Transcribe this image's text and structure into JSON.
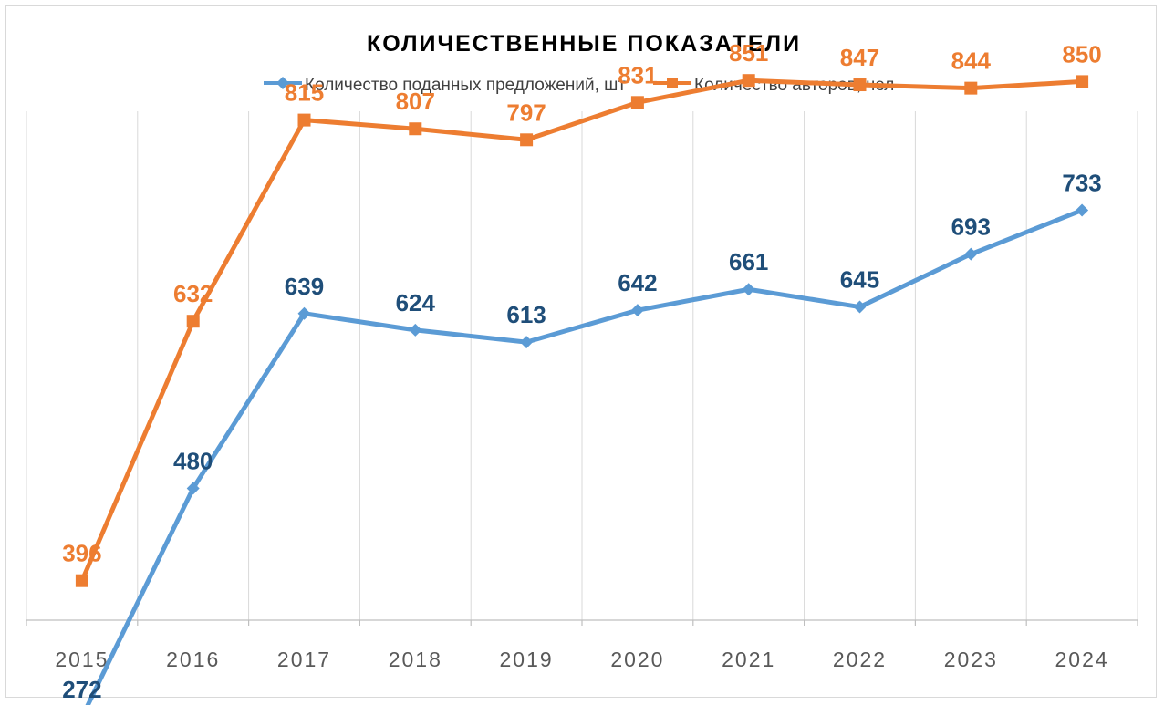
{
  "chart_data": {
    "type": "line",
    "title": "КОЛИЧЕСТВЕННЫЕ ПОКАЗАТЕЛИ",
    "categories": [
      "2015",
      "2016",
      "2017",
      "2018",
      "2019",
      "2020",
      "2021",
      "2022",
      "2023",
      "2024"
    ],
    "series": [
      {
        "name": "Количество поданных предложений, шт",
        "values": [
          272,
          480,
          639,
          624,
          613,
          642,
          661,
          645,
          693,
          733
        ],
        "color": "#5b9bd5",
        "label_color": "#1f4e79",
        "marker": "diamond"
      },
      {
        "name": "Количество авторов, чел",
        "values": [
          396,
          632,
          815,
          807,
          797,
          831,
          851,
          847,
          844,
          850
        ],
        "color": "#ed7d31",
        "label_color": "#ed7d31",
        "marker": "square"
      }
    ],
    "ylim": [
      0,
      1000
    ],
    "grid": "vertical",
    "legend_position": "top"
  }
}
